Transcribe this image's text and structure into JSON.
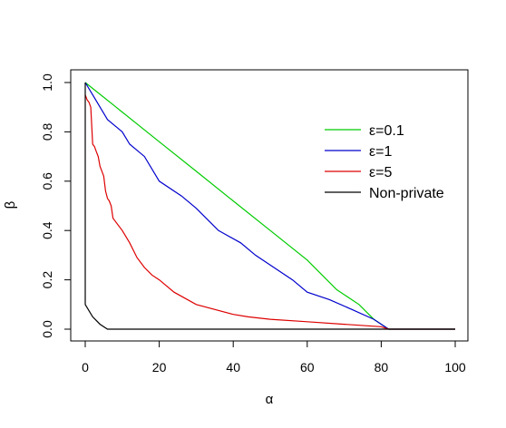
{
  "chart_data": {
    "type": "line",
    "title": "",
    "xlabel": "α",
    "ylabel": "β",
    "xlim": [
      0,
      100
    ],
    "ylim": [
      0,
      1
    ],
    "xticks": [
      0,
      20,
      40,
      60,
      80,
      100
    ],
    "yticks": [
      0.0,
      0.2,
      0.4,
      0.6,
      0.8,
      1.0
    ],
    "xtick_labels": [
      "0",
      "20",
      "40",
      "60",
      "80",
      "100"
    ],
    "ytick_labels": [
      "0.0",
      "0.2",
      "0.4",
      "0.6",
      "0.8",
      "1.0"
    ],
    "grid": false,
    "legend_position": "top-right",
    "series": [
      {
        "name": "ε=0.1",
        "color": "#00cc00",
        "x": [
          0,
          10,
          20,
          30,
          40,
          50,
          60,
          68,
          74,
          78,
          82,
          100
        ],
        "y": [
          1.0,
          0.88,
          0.76,
          0.64,
          0.52,
          0.4,
          0.28,
          0.16,
          0.1,
          0.04,
          0.0,
          0.0
        ]
      },
      {
        "name": "ε=1",
        "color": "#0000cc",
        "x": [
          0,
          2,
          6,
          10,
          12,
          16,
          20,
          26,
          30,
          36,
          42,
          46,
          52,
          56,
          60,
          66,
          72,
          78,
          82,
          100
        ],
        "y": [
          1.0,
          0.95,
          0.85,
          0.8,
          0.75,
          0.7,
          0.6,
          0.54,
          0.49,
          0.4,
          0.35,
          0.3,
          0.24,
          0.2,
          0.15,
          0.12,
          0.08,
          0.04,
          0.0,
          0.0
        ]
      },
      {
        "name": "ε=5",
        "color": "#dd0000",
        "x": [
          0,
          0.5,
          1,
          1.5,
          2,
          2.5,
          3,
          3.5,
          4,
          4.5,
          5,
          5.5,
          6,
          6.5,
          7,
          7.5,
          8,
          10,
          12,
          14,
          16,
          18,
          20,
          24,
          30,
          40,
          44,
          50,
          60,
          70,
          80,
          82,
          100
        ],
        "y": [
          0.95,
          0.93,
          0.92,
          0.9,
          0.75,
          0.74,
          0.72,
          0.7,
          0.66,
          0.64,
          0.62,
          0.56,
          0.53,
          0.52,
          0.5,
          0.45,
          0.44,
          0.4,
          0.35,
          0.29,
          0.25,
          0.22,
          0.2,
          0.15,
          0.1,
          0.06,
          0.05,
          0.04,
          0.03,
          0.02,
          0.01,
          0.0,
          0.0
        ]
      },
      {
        "name": "Non-private",
        "color": "#000000",
        "x": [
          0,
          0,
          2,
          4,
          6,
          100
        ],
        "y": [
          1.0,
          0.1,
          0.05,
          0.02,
          0.0,
          0.0
        ]
      }
    ]
  }
}
